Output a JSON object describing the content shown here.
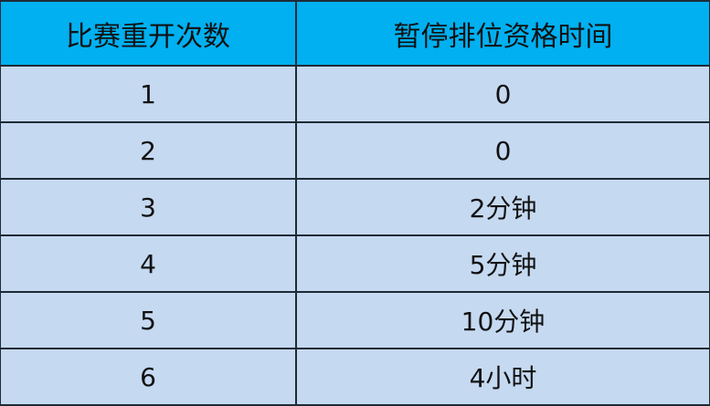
{
  "table": {
    "headers": [
      "比赛重开次数",
      "暂停排位资格时间"
    ],
    "rows": [
      [
        "1",
        "0"
      ],
      [
        "2",
        "0"
      ],
      [
        "3",
        "2分钟"
      ],
      [
        "4",
        "5分钟"
      ],
      [
        "5",
        "10分钟"
      ],
      [
        "6",
        "4小时"
      ]
    ]
  },
  "colors": {
    "header": "#00b0f0",
    "body": "#c5d9f1",
    "border": "#1e2a36"
  }
}
